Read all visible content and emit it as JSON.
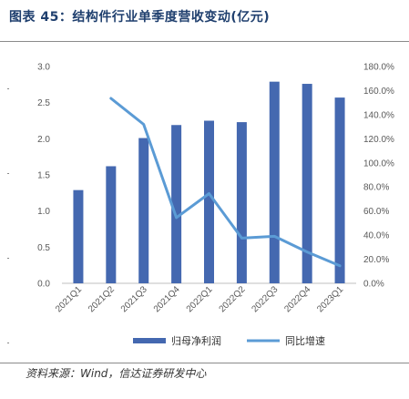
{
  "header": {
    "title": "图表 45：结构件行业单季度营收变动(亿元)"
  },
  "footer": {
    "source": "资料来源：Wind，信达证券研发中心"
  },
  "chart_data": {
    "type": "bar",
    "categories": [
      "2021Q1",
      "2021Q2",
      "2021Q3",
      "2021Q4",
      "2022Q1",
      "2022Q2",
      "2022Q3",
      "2022Q4",
      "2023Q1"
    ],
    "series": [
      {
        "name": "归母净利润",
        "type": "bar",
        "axis": "left",
        "color": "#4468b0",
        "values": [
          1.29,
          1.62,
          2.01,
          2.19,
          2.25,
          2.23,
          2.79,
          2.76,
          2.57
        ]
      },
      {
        "name": "同比增速",
        "type": "line",
        "axis": "right",
        "color": "#5b9bd5",
        "values": [
          null,
          153.5,
          132.0,
          54.5,
          74.5,
          37.5,
          39.0,
          26.0,
          14.5
        ]
      }
    ],
    "left_axis": {
      "min": 0,
      "max": 3.0,
      "ticks": [
        "0.0",
        "0.5",
        "1.0",
        "1.5",
        "2.0",
        "2.5",
        "3.0"
      ]
    },
    "right_axis": {
      "min": 0,
      "max": 180,
      "ticks": [
        "0.0%",
        "20.0%",
        "40.0%",
        "60.0%",
        "80.0%",
        "100.0%",
        "120.0%",
        "140.0%",
        "160.0%",
        "180.0%"
      ]
    },
    "legend_position": "bottom",
    "grid": false
  }
}
